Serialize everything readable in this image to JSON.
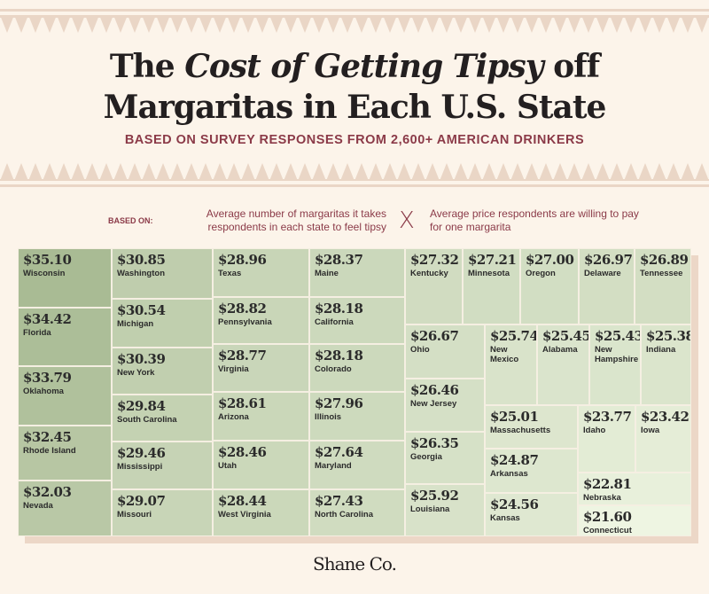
{
  "header": {
    "title_part1": "The ",
    "title_italic": "Cost of Getting Tipsy",
    "title_part2": " off",
    "title_line2": "Margaritas in Each U.S. State",
    "subtitle": "BASED ON SURVEY RESPONSES FROM 2,600+ AMERICAN DRINKERS"
  },
  "based_on": {
    "label": "BASED ON:",
    "metric1": "Average number of margaritas it takes respondents in each state to feel tipsy",
    "times": "X",
    "metric2": "Average price respondents are willing to pay for one margarita"
  },
  "colors": {
    "background": "#fcf4ea",
    "accent": "#8b3a48",
    "tile_dark": "#a9bb94",
    "tile_light": "#eef5e2"
  },
  "chart_data": {
    "type": "treemap",
    "unit": "USD",
    "items": [
      {
        "state": "Wisconsin",
        "label": "$35.10",
        "value": 35.1
      },
      {
        "state": "Florida",
        "label": "$34.42",
        "value": 34.42
      },
      {
        "state": "Oklahoma",
        "label": "$33.79",
        "value": 33.79
      },
      {
        "state": "Rhode Island",
        "label": "$32.45",
        "value": 32.45
      },
      {
        "state": "Nevada",
        "label": "$32.03",
        "value": 32.03
      },
      {
        "state": "Washington",
        "label": "$30.85",
        "value": 30.85
      },
      {
        "state": "Michigan",
        "label": "$30.54",
        "value": 30.54
      },
      {
        "state": "New York",
        "label": "$30.39",
        "value": 30.39
      },
      {
        "state": "South Carolina",
        "label": "$29.84",
        "value": 29.84
      },
      {
        "state": "Mississippi",
        "label": "$29.46",
        "value": 29.46
      },
      {
        "state": "Missouri",
        "label": "$29.07",
        "value": 29.07
      },
      {
        "state": "Texas",
        "label": "$28.96",
        "value": 28.96
      },
      {
        "state": "Pennsylvania",
        "label": "$28.82",
        "value": 28.82
      },
      {
        "state": "Virginia",
        "label": "$28.77",
        "value": 28.77
      },
      {
        "state": "Arizona",
        "label": "$28.61",
        "value": 28.61
      },
      {
        "state": "Utah",
        "label": "$28.46",
        "value": 28.46
      },
      {
        "state": "West Virginia",
        "label": "$28.44",
        "value": 28.44
      },
      {
        "state": "Maine",
        "label": "$28.37",
        "value": 28.37
      },
      {
        "state": "California",
        "label": "$28.18",
        "value": 28.18
      },
      {
        "state": "Colorado",
        "label": "$28.18",
        "value": 28.18
      },
      {
        "state": "Illinois",
        "label": "$27.96",
        "value": 27.96
      },
      {
        "state": "Maryland",
        "label": "$27.64",
        "value": 27.64
      },
      {
        "state": "North Carolina",
        "label": "$27.43",
        "value": 27.43
      },
      {
        "state": "Kentucky",
        "label": "$27.32",
        "value": 27.32
      },
      {
        "state": "Minnesota",
        "label": "$27.21",
        "value": 27.21
      },
      {
        "state": "Oregon",
        "label": "$27.00",
        "value": 27.0
      },
      {
        "state": "Delaware",
        "label": "$26.97",
        "value": 26.97
      },
      {
        "state": "Tennessee",
        "label": "$26.89",
        "value": 26.89
      },
      {
        "state": "Ohio",
        "label": "$26.67",
        "value": 26.67
      },
      {
        "state": "New Jersey",
        "label": "$26.46",
        "value": 26.46
      },
      {
        "state": "Georgia",
        "label": "$26.35",
        "value": 26.35
      },
      {
        "state": "Louisiana",
        "label": "$25.92",
        "value": 25.92
      },
      {
        "state": "New Mexico",
        "label": "$25.74",
        "value": 25.74
      },
      {
        "state": "Alabama",
        "label": "$25.45",
        "value": 25.45
      },
      {
        "state": "New Hampshire",
        "label": "$25.43",
        "value": 25.43
      },
      {
        "state": "Indiana",
        "label": "$25.38",
        "value": 25.38
      },
      {
        "state": "Massachusetts",
        "label": "$25.01",
        "value": 25.01
      },
      {
        "state": "Arkansas",
        "label": "$24.87",
        "value": 24.87
      },
      {
        "state": "Kansas",
        "label": "$24.56",
        "value": 24.56
      },
      {
        "state": "Idaho",
        "label": "$23.77",
        "value": 23.77
      },
      {
        "state": "Iowa",
        "label": "$23.42",
        "value": 23.42
      },
      {
        "state": "Nebraska",
        "label": "$22.81",
        "value": 22.81
      },
      {
        "state": "Connecticut",
        "label": "$21.60",
        "value": 21.6
      }
    ]
  },
  "footer": {
    "logo": "Shane Co."
  }
}
